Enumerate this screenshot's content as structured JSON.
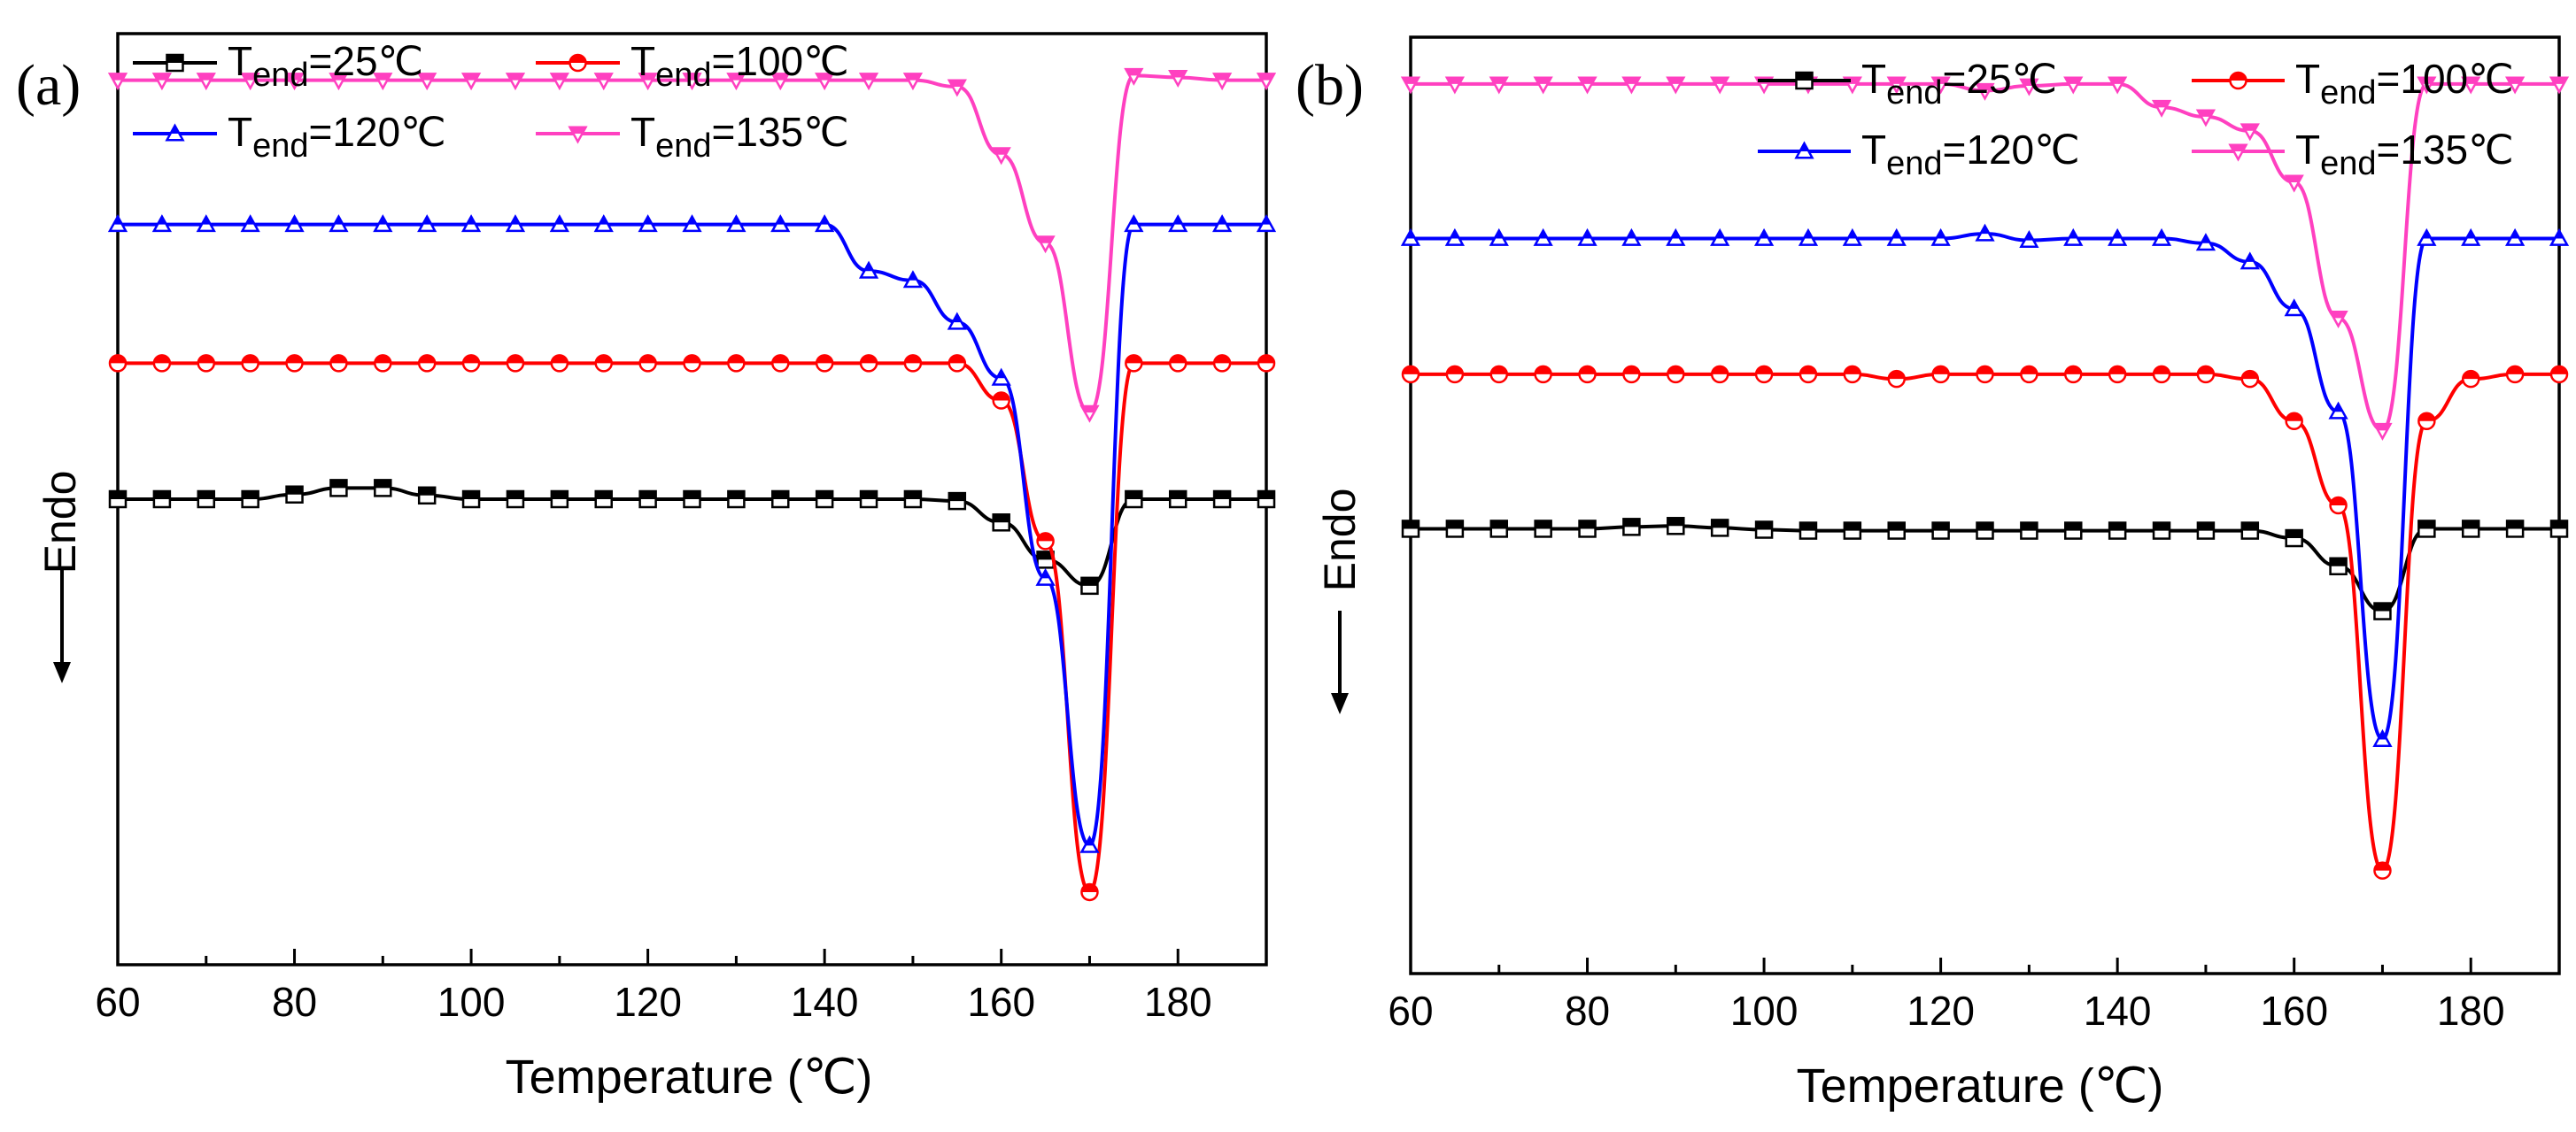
{
  "chart_data": [
    {
      "type": "line",
      "panel_label": "(a)",
      "xlabel": "Temperature (℃)",
      "ylabel": "Endo",
      "xlim": [
        60,
        190
      ],
      "ylim": [
        0,
        100
      ],
      "xticks": [
        "60",
        "80",
        "100",
        "120",
        "140",
        "160",
        "180"
      ],
      "xtick_values": [
        60,
        80,
        100,
        120,
        140,
        160,
        180
      ],
      "legend": {
        "placement": "top"
      },
      "series": [
        {
          "name": "T_end=25℃",
          "label_main": "T",
          "label_sub": "end",
          "label_rest": "=25℃",
          "color": "#000000",
          "marker": "square",
          "fill": "half",
          "x": [
            60,
            65,
            70,
            75,
            80,
            85,
            90,
            95,
            100,
            105,
            110,
            115,
            120,
            125,
            130,
            135,
            140,
            145,
            150,
            155,
            160,
            165,
            170,
            175,
            180,
            185,
            190
          ],
          "y": [
            50.0,
            50.0,
            50.0,
            50.0,
            50.5,
            51.2,
            51.2,
            50.4,
            50.0,
            50.0,
            50.0,
            50.0,
            50.0,
            50.0,
            50.0,
            50.0,
            50.0,
            50.0,
            50.0,
            49.8,
            47.5,
            43.5,
            40.7,
            50.0,
            50.0,
            50.0,
            50.0
          ]
        },
        {
          "name": "T_end=100℃",
          "label_main": "T",
          "label_sub": "end",
          "label_rest": "=100℃",
          "color": "#ff0000",
          "marker": "circle",
          "fill": "half",
          "x": [
            60,
            65,
            70,
            75,
            80,
            85,
            90,
            95,
            100,
            105,
            110,
            115,
            120,
            125,
            130,
            135,
            140,
            145,
            150,
            155,
            160,
            165,
            170,
            175,
            180,
            185,
            190
          ],
          "y": [
            64.6,
            64.6,
            64.6,
            64.6,
            64.6,
            64.6,
            64.6,
            64.6,
            64.6,
            64.6,
            64.6,
            64.6,
            64.6,
            64.6,
            64.6,
            64.6,
            64.6,
            64.6,
            64.6,
            64.6,
            60.6,
            45.5,
            7.8,
            64.6,
            64.6,
            64.6,
            64.6
          ]
        },
        {
          "name": "T_end=120℃",
          "label_main": "T",
          "label_sub": "end",
          "label_rest": "=120℃",
          "color": "#0000ff",
          "marker": "triangle-up",
          "fill": "half",
          "x": [
            60,
            65,
            70,
            75,
            80,
            85,
            90,
            95,
            100,
            105,
            110,
            115,
            120,
            125,
            130,
            135,
            140,
            145,
            150,
            155,
            160,
            165,
            170,
            175,
            180,
            185,
            190
          ],
          "y": [
            79.5,
            79.5,
            79.5,
            79.5,
            79.5,
            79.5,
            79.5,
            79.5,
            79.5,
            79.5,
            79.5,
            79.5,
            79.5,
            79.5,
            79.5,
            79.5,
            79.5,
            74.5,
            73.5,
            69.0,
            63.0,
            41.5,
            12.8,
            79.5,
            79.5,
            79.5,
            79.5
          ]
        },
        {
          "name": "T_end=135℃",
          "label_main": "T",
          "label_sub": "end",
          "label_rest": "=135℃",
          "color": "#ff40c0",
          "marker": "triangle-down",
          "fill": "half",
          "x": [
            60,
            65,
            70,
            75,
            80,
            85,
            90,
            95,
            100,
            105,
            110,
            115,
            120,
            125,
            130,
            135,
            140,
            145,
            150,
            155,
            160,
            165,
            170,
            175,
            180,
            185,
            190
          ],
          "y": [
            95.0,
            95.0,
            95.0,
            95.0,
            95.0,
            95.0,
            95.0,
            95.0,
            95.0,
            95.0,
            95.0,
            95.0,
            95.0,
            95.0,
            95.0,
            95.0,
            95.0,
            95.0,
            95.0,
            94.3,
            87.0,
            77.5,
            59.3,
            95.5,
            95.3,
            95.0,
            95.0
          ]
        }
      ]
    },
    {
      "type": "line",
      "panel_label": "(b)",
      "xlabel": "Temperature (℃)",
      "ylabel": "Endo",
      "xlim": [
        60,
        190
      ],
      "ylim": [
        0,
        100
      ],
      "xticks": [
        "60",
        "80",
        "100",
        "120",
        "140",
        "160",
        "180"
      ],
      "xtick_values": [
        60,
        80,
        100,
        120,
        140,
        160,
        180
      ],
      "legend": {
        "placement": "top-right"
      },
      "series": [
        {
          "name": "T_end=25℃",
          "label_main": "T",
          "label_sub": "end",
          "label_rest": "=25℃",
          "color": "#000000",
          "marker": "square",
          "fill": "half",
          "x": [
            60,
            65,
            70,
            75,
            80,
            85,
            90,
            95,
            100,
            105,
            110,
            115,
            120,
            125,
            130,
            135,
            140,
            145,
            150,
            155,
            160,
            165,
            170,
            175,
            180,
            185,
            190
          ],
          "y": [
            47.5,
            47.5,
            47.5,
            47.5,
            47.5,
            47.7,
            47.8,
            47.6,
            47.4,
            47.3,
            47.3,
            47.3,
            47.3,
            47.3,
            47.3,
            47.3,
            47.3,
            47.3,
            47.3,
            47.3,
            46.5,
            43.5,
            38.7,
            47.5,
            47.5,
            47.5,
            47.5
          ]
        },
        {
          "name": "T_end=100℃",
          "label_main": "T",
          "label_sub": "end",
          "label_rest": "=100℃",
          "color": "#ff0000",
          "marker": "circle",
          "fill": "half",
          "x": [
            60,
            65,
            70,
            75,
            80,
            85,
            90,
            95,
            100,
            105,
            110,
            115,
            120,
            125,
            130,
            135,
            140,
            145,
            150,
            155,
            160,
            165,
            170,
            175,
            180,
            185,
            190
          ],
          "y": [
            64.0,
            64.0,
            64.0,
            64.0,
            64.0,
            64.0,
            64.0,
            64.0,
            64.0,
            64.0,
            64.0,
            63.5,
            64.0,
            64.0,
            64.0,
            64.0,
            64.0,
            64.0,
            64.0,
            63.5,
            59.0,
            50.0,
            11.0,
            59.0,
            63.5,
            64.0,
            64.0
          ]
        },
        {
          "name": "T_end=120℃",
          "label_main": "T",
          "label_sub": "end",
          "label_rest": "=120℃",
          "color": "#0000ff",
          "marker": "triangle-up",
          "fill": "half",
          "x": [
            60,
            65,
            70,
            75,
            80,
            85,
            90,
            95,
            100,
            105,
            110,
            115,
            120,
            125,
            130,
            135,
            140,
            145,
            150,
            155,
            160,
            165,
            170,
            175,
            180,
            185,
            190
          ],
          "y": [
            78.5,
            78.5,
            78.5,
            78.5,
            78.5,
            78.5,
            78.5,
            78.5,
            78.5,
            78.5,
            78.5,
            78.5,
            78.5,
            79.0,
            78.3,
            78.5,
            78.5,
            78.5,
            78.0,
            76.0,
            71.0,
            60.0,
            25.0,
            78.5,
            78.5,
            78.5,
            78.5
          ]
        },
        {
          "name": "T_end=135℃",
          "label_main": "T",
          "label_sub": "end",
          "label_rest": "=135℃",
          "color": "#ff40c0",
          "marker": "triangle-down",
          "fill": "half",
          "x": [
            60,
            65,
            70,
            75,
            80,
            85,
            90,
            95,
            100,
            105,
            110,
            115,
            120,
            125,
            130,
            135,
            140,
            145,
            150,
            155,
            160,
            165,
            170,
            175,
            180,
            185,
            190
          ],
          "y": [
            95.0,
            95.0,
            95.0,
            95.0,
            95.0,
            95.0,
            95.0,
            95.0,
            95.0,
            95.0,
            95.0,
            95.0,
            95.0,
            94.3,
            94.8,
            95.0,
            95.0,
            92.5,
            91.5,
            90.0,
            84.5,
            70.0,
            58.0,
            95.0,
            95.0,
            95.0,
            95.0
          ]
        }
      ]
    }
  ]
}
